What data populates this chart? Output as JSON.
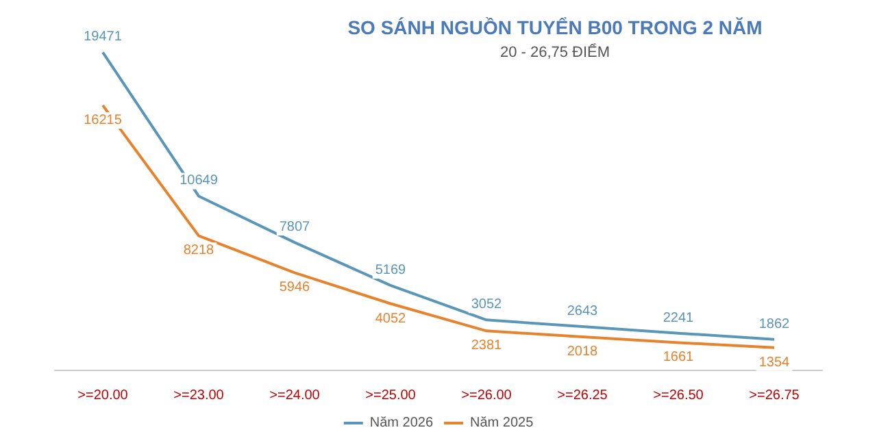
{
  "chart_data": {
    "type": "line",
    "title": "SO SÁNH NGUỒN TUYỂN B00 TRONG 2 NĂM",
    "subtitle": "20 - 26,75 ĐIỂM",
    "categories": [
      ">=20.00",
      ">=23.00",
      ">=24.00",
      ">=25.00",
      ">=26.00",
      ">=26.25",
      ">=26.50",
      ">=26.75"
    ],
    "series": [
      {
        "name": "Năm 2026",
        "color": "#5a96b8",
        "values": [
          19471,
          10649,
          7807,
          5169,
          3052,
          2643,
          2241,
          1862
        ]
      },
      {
        "name": "Năm 2025",
        "color": "#e5832e",
        "values": [
          16215,
          8218,
          5946,
          4052,
          2381,
          2018,
          1661,
          1354
        ]
      }
    ],
    "data_labels": true,
    "legend": "bottom",
    "grid": false,
    "marker": "none",
    "tick_labels": "x"
  }
}
